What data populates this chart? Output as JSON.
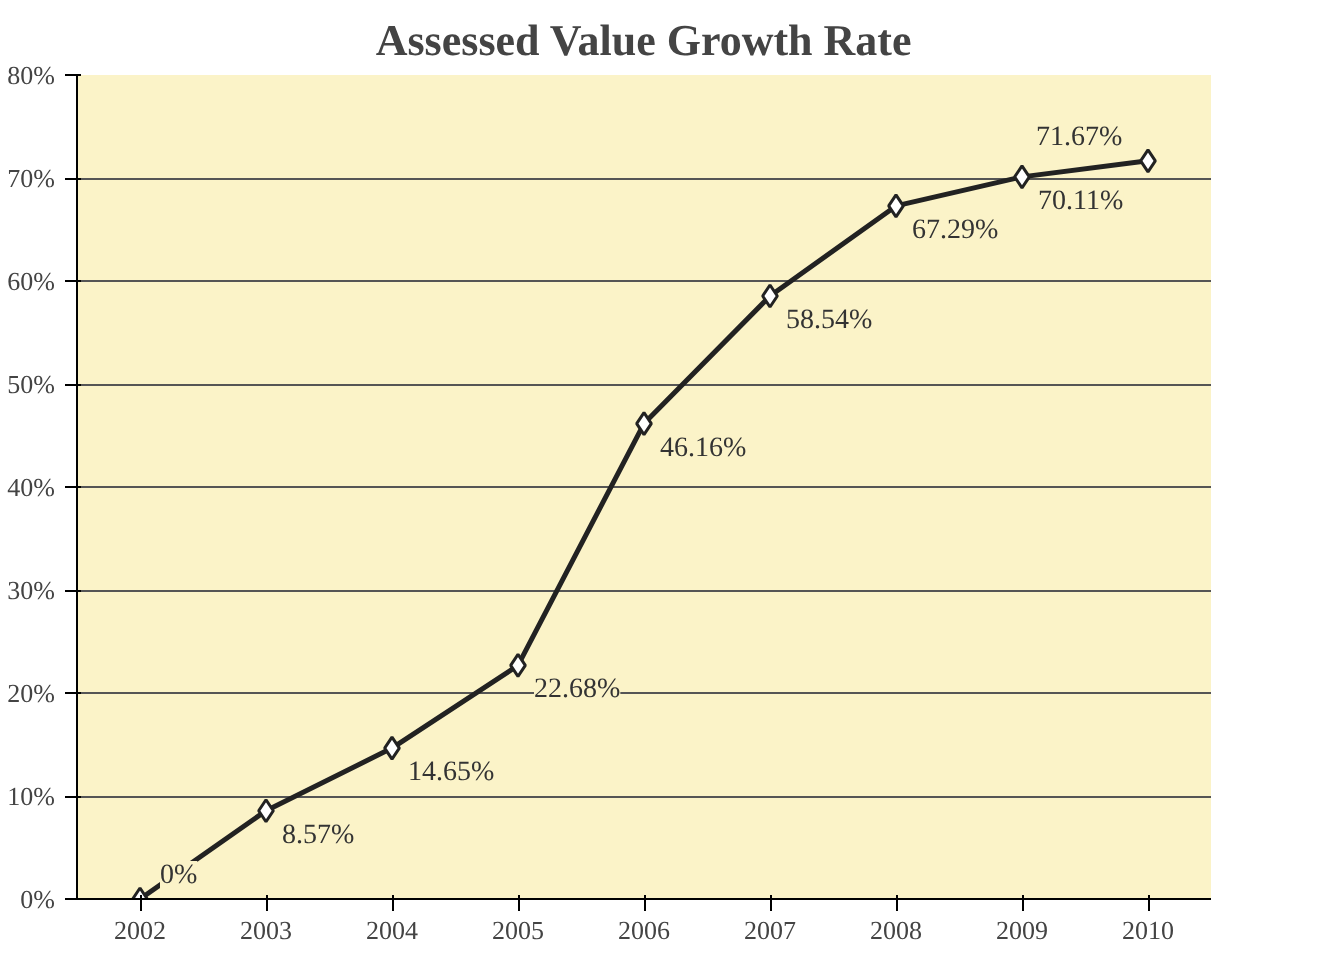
{
  "chart_data": {
    "type": "line",
    "title": "Assessed Value Growth Rate",
    "categories": [
      "2002",
      "2003",
      "2004",
      "2005",
      "2006",
      "2007",
      "2008",
      "2009",
      "2010"
    ],
    "series": [
      {
        "color": "#222222",
        "values": [
          0,
          8.57,
          14.65,
          22.68,
          46.16,
          58.54,
          67.29,
          70.11,
          71.67
        ],
        "value_labels": [
          "0%",
          "8.57%",
          "14.65%",
          "22.68%",
          "46.16%",
          "58.54%",
          "67.29%",
          "70.11%",
          "71.67%"
        ]
      }
    ],
    "ylim": [
      0,
      80
    ],
    "yticks": [
      {
        "value": 0,
        "label": "0%"
      },
      {
        "value": 10,
        "label": "10%"
      },
      {
        "value": 20,
        "label": "20%"
      },
      {
        "value": 30,
        "label": "30%"
      },
      {
        "value": 40,
        "label": "40%"
      },
      {
        "value": 50,
        "label": "50%"
      },
      {
        "value": 60,
        "label": "60%"
      },
      {
        "value": 70,
        "label": "70%"
      },
      {
        "value": 80,
        "label": "80%"
      }
    ],
    "grid": "y",
    "marker": "diamond",
    "line_style": "solid"
  }
}
